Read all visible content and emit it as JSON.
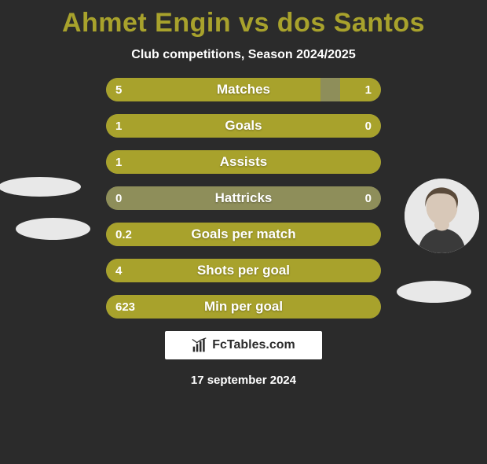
{
  "title_color": "#a8a22c",
  "title": "Ahmet Engin vs dos Santos",
  "subtitle": "Club competitions, Season 2024/2025",
  "background_color": "#2b2b2b",
  "bar_fill_color": "#a8a22c",
  "bar_bg_color": "#8e8e5a",
  "bars": [
    {
      "label": "Matches",
      "left": "5",
      "right": "1",
      "left_pct": 78,
      "right_pct": 15
    },
    {
      "label": "Goals",
      "left": "1",
      "right": "0",
      "left_pct": 100,
      "right_pct": 0
    },
    {
      "label": "Assists",
      "left": "1",
      "right": "",
      "left_pct": 100,
      "right_pct": 0
    },
    {
      "label": "Hattricks",
      "left": "0",
      "right": "0",
      "left_pct": 0,
      "right_pct": 0
    },
    {
      "label": "Goals per match",
      "left": "0.2",
      "right": "",
      "left_pct": 100,
      "right_pct": 0
    },
    {
      "label": "Shots per goal",
      "left": "4",
      "right": "",
      "left_pct": 100,
      "right_pct": 0
    },
    {
      "label": "Min per goal",
      "left": "623",
      "right": "",
      "left_pct": 100,
      "right_pct": 0
    }
  ],
  "footer_brand": "FcTables.com",
  "footer_date": "17 september 2024",
  "avatars": {
    "left_bg": "#dcdcdc",
    "right_bg": "#e8e8e8"
  }
}
